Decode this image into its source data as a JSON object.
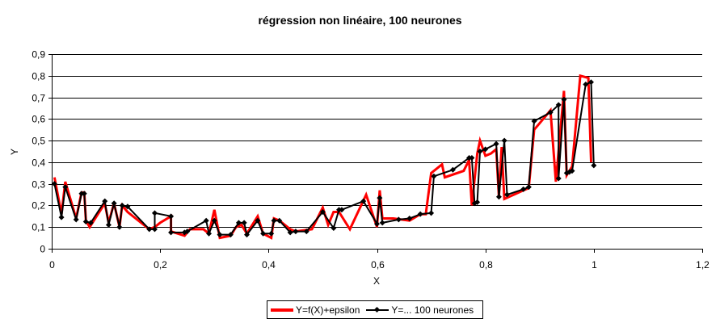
{
  "chart_data": {
    "type": "line",
    "title": "régression non linéaire, 100 neurones",
    "xlabel": "X",
    "ylabel": "Y",
    "xlim": [
      0,
      1.2
    ],
    "ylim": [
      0,
      0.9
    ],
    "x_ticks": [
      "0",
      "0,2",
      "0,4",
      "0,6",
      "0,8",
      "1",
      "1,2"
    ],
    "y_ticks": [
      "0",
      "0,1",
      "0,2",
      "0,3",
      "0,4",
      "0,5",
      "0,6",
      "0,7",
      "0,8",
      "0,9"
    ],
    "grid": "horizontal",
    "legend_position": "bottom",
    "series": [
      {
        "name": "Y=f(X)+epsilon",
        "color": "#ff0000",
        "marker": "none",
        "points": [
          [
            0.005,
            0.33
          ],
          [
            0.018,
            0.16
          ],
          [
            0.025,
            0.31
          ],
          [
            0.045,
            0.14
          ],
          [
            0.055,
            0.26
          ],
          [
            0.06,
            0.26
          ],
          [
            0.063,
            0.13
          ],
          [
            0.07,
            0.1
          ],
          [
            0.098,
            0.21
          ],
          [
            0.105,
            0.12
          ],
          [
            0.115,
            0.21
          ],
          [
            0.125,
            0.1
          ],
          [
            0.13,
            0.2
          ],
          [
            0.14,
            0.17
          ],
          [
            0.18,
            0.09
          ],
          [
            0.19,
            0.1
          ],
          [
            0.2,
            0.12
          ],
          [
            0.22,
            0.15
          ],
          [
            0.22,
            0.08
          ],
          [
            0.245,
            0.06
          ],
          [
            0.255,
            0.09
          ],
          [
            0.28,
            0.09
          ],
          [
            0.29,
            0.07
          ],
          [
            0.3,
            0.18
          ],
          [
            0.31,
            0.05
          ],
          [
            0.33,
            0.06
          ],
          [
            0.34,
            0.1
          ],
          [
            0.35,
            0.11
          ],
          [
            0.36,
            0.07
          ],
          [
            0.38,
            0.15
          ],
          [
            0.39,
            0.07
          ],
          [
            0.405,
            0.05
          ],
          [
            0.41,
            0.14
          ],
          [
            0.42,
            0.13
          ],
          [
            0.44,
            0.09
          ],
          [
            0.45,
            0.08
          ],
          [
            0.48,
            0.09
          ],
          [
            0.5,
            0.19
          ],
          [
            0.51,
            0.11
          ],
          [
            0.52,
            0.17
          ],
          [
            0.53,
            0.17
          ],
          [
            0.55,
            0.09
          ],
          [
            0.58,
            0.25
          ],
          [
            0.6,
            0.1
          ],
          [
            0.605,
            0.27
          ],
          [
            0.61,
            0.14
          ],
          [
            0.63,
            0.14
          ],
          [
            0.66,
            0.13
          ],
          [
            0.68,
            0.16
          ],
          [
            0.69,
            0.16
          ],
          [
            0.7,
            0.35
          ],
          [
            0.72,
            0.39
          ],
          [
            0.725,
            0.33
          ],
          [
            0.76,
            0.36
          ],
          [
            0.77,
            0.41
          ],
          [
            0.775,
            0.2
          ],
          [
            0.785,
            0.44
          ],
          [
            0.79,
            0.5
          ],
          [
            0.8,
            0.43
          ],
          [
            0.81,
            0.44
          ],
          [
            0.82,
            0.46
          ],
          [
            0.825,
            0.24
          ],
          [
            0.83,
            0.47
          ],
          [
            0.835,
            0.23
          ],
          [
            0.87,
            0.27
          ],
          [
            0.88,
            0.28
          ],
          [
            0.89,
            0.55
          ],
          [
            0.92,
            0.64
          ],
          [
            0.93,
            0.31
          ],
          [
            0.945,
            0.73
          ],
          [
            0.95,
            0.34
          ],
          [
            0.96,
            0.38
          ],
          [
            0.975,
            0.8
          ],
          [
            0.99,
            0.79
          ],
          [
            0.995,
            0.4
          ]
        ]
      },
      {
        "name": "Y=... 100 neurones",
        "color": "#000000",
        "marker": "diamond",
        "points": [
          [
            0.005,
            0.3
          ],
          [
            0.018,
            0.145
          ],
          [
            0.025,
            0.285
          ],
          [
            0.045,
            0.135
          ],
          [
            0.055,
            0.255
          ],
          [
            0.06,
            0.255
          ],
          [
            0.063,
            0.125
          ],
          [
            0.072,
            0.12
          ],
          [
            0.098,
            0.22
          ],
          [
            0.105,
            0.11
          ],
          [
            0.115,
            0.21
          ],
          [
            0.125,
            0.1
          ],
          [
            0.13,
            0.2
          ],
          [
            0.14,
            0.195
          ],
          [
            0.18,
            0.09
          ],
          [
            0.19,
            0.09
          ],
          [
            0.19,
            0.165
          ],
          [
            0.22,
            0.15
          ],
          [
            0.22,
            0.075
          ],
          [
            0.245,
            0.075
          ],
          [
            0.25,
            0.08
          ],
          [
            0.285,
            0.13
          ],
          [
            0.29,
            0.07
          ],
          [
            0.3,
            0.13
          ],
          [
            0.31,
            0.065
          ],
          [
            0.33,
            0.065
          ],
          [
            0.345,
            0.12
          ],
          [
            0.355,
            0.12
          ],
          [
            0.36,
            0.065
          ],
          [
            0.38,
            0.13
          ],
          [
            0.39,
            0.07
          ],
          [
            0.405,
            0.07
          ],
          [
            0.41,
            0.13
          ],
          [
            0.42,
            0.13
          ],
          [
            0.44,
            0.075
          ],
          [
            0.45,
            0.08
          ],
          [
            0.47,
            0.08
          ],
          [
            0.5,
            0.17
          ],
          [
            0.52,
            0.095
          ],
          [
            0.53,
            0.18
          ],
          [
            0.535,
            0.18
          ],
          [
            0.575,
            0.22
          ],
          [
            0.6,
            0.115
          ],
          [
            0.605,
            0.235
          ],
          [
            0.61,
            0.12
          ],
          [
            0.64,
            0.135
          ],
          [
            0.66,
            0.14
          ],
          [
            0.68,
            0.16
          ],
          [
            0.7,
            0.165
          ],
          [
            0.705,
            0.335
          ],
          [
            0.74,
            0.365
          ],
          [
            0.77,
            0.42
          ],
          [
            0.775,
            0.42
          ],
          [
            0.78,
            0.21
          ],
          [
            0.785,
            0.215
          ],
          [
            0.79,
            0.45
          ],
          [
            0.8,
            0.46
          ],
          [
            0.82,
            0.485
          ],
          [
            0.825,
            0.24
          ],
          [
            0.835,
            0.5
          ],
          [
            0.84,
            0.25
          ],
          [
            0.87,
            0.275
          ],
          [
            0.88,
            0.285
          ],
          [
            0.89,
            0.59
          ],
          [
            0.92,
            0.63
          ],
          [
            0.935,
            0.665
          ],
          [
            0.935,
            0.325
          ],
          [
            0.945,
            0.69
          ],
          [
            0.95,
            0.35
          ],
          [
            0.955,
            0.355
          ],
          [
            0.96,
            0.36
          ],
          [
            0.985,
            0.76
          ],
          [
            0.995,
            0.77
          ],
          [
            1.0,
            0.385
          ]
        ]
      }
    ]
  },
  "legend": {
    "items": [
      {
        "label": "Y=f(X)+epsilon"
      },
      {
        "label": "Y=... 100 neurones"
      }
    ]
  }
}
